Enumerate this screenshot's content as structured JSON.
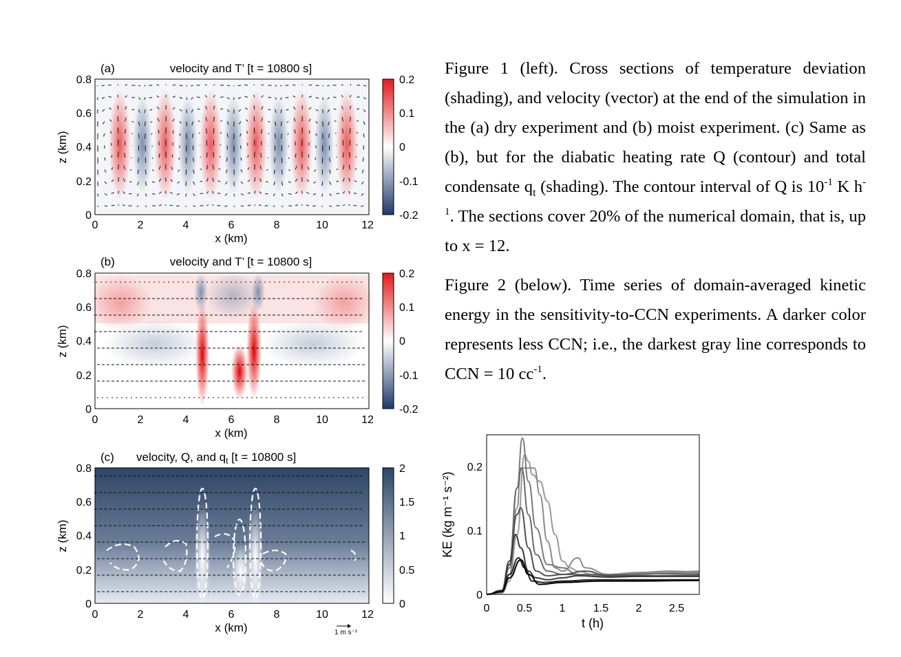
{
  "figure_left": {
    "panels": [
      {
        "label": "(a)",
        "title": "velocity and T’ [t = 10800 s]",
        "x_label": "x (km)",
        "y_label": "z (km)",
        "x_ticks": [
          "0",
          "2",
          "4",
          "6",
          "8",
          "10",
          "12"
        ],
        "y_ticks": [
          "0",
          "0.2",
          "0.4",
          "0.6",
          "0.8"
        ],
        "colorbar_ticks": [
          "-0.2",
          "-0.1",
          "0",
          "0.1",
          "0.2"
        ],
        "colormap": [
          "#1f3a6b",
          "#ffffff",
          "#e31a1c"
        ]
      },
      {
        "label": "(b)",
        "title": "velocity and T’ [t = 10800 s]",
        "x_label": "x (km)",
        "y_label": "z (km)",
        "x_ticks": [
          "0",
          "2",
          "4",
          "6",
          "8",
          "10",
          "12"
        ],
        "y_ticks": [
          "0",
          "0.2",
          "0.4",
          "0.6",
          "0.8"
        ],
        "colorbar_ticks": [
          "-0.2",
          "-0.1",
          "0",
          "0.1",
          "0.2"
        ],
        "colormap": [
          "#1f3a6b",
          "#ffffff",
          "#e31a1c"
        ]
      },
      {
        "label": "(c)",
        "title_main": "velocity, Q, and q",
        "title_sub": "t",
        "title_end": " [t = 10800 s]",
        "x_label": "x (km)",
        "y_label": "z (km)",
        "x_ticks": [
          "0",
          "2",
          "4",
          "6",
          "8",
          "10",
          "12"
        ],
        "y_ticks": [
          "0",
          "0.2",
          "0.4",
          "0.6",
          "0.8"
        ],
        "colorbar_ticks": [
          "0",
          "0.5",
          "1",
          "1.5",
          "2"
        ],
        "colormap": [
          "#ffffff",
          "#2c4668"
        ],
        "scale_label": "1 m s⁻¹"
      }
    ]
  },
  "caption": {
    "fig1_p1": "Figure 1 (left). Cross sections of temperature deviation (shading), and velocity (vector) at the end of the simulation in the (a) dry experiment and (b) moist experiment. (c) Same as (b), but for the diabatic heating rate Q (contour) and total condensate q",
    "fig1_p1_sub": "t",
    "fig1_p2": " (shading). The contour interval of Q is 10",
    "fig1_p2_sup": "-1",
    "fig1_p3": " K h",
    "fig1_p3_sup": "-1",
    "fig1_p4": ". The sections cover 20% of the numerical domain, that is, up to x = 12.",
    "fig2_p1": "Figure 2 (below). Time series of domain-averaged kinetic energy in the sensitivity-to-CCN experiments. A darker color represents less CCN; i.e., the darkest gray line corresponds to CCN = 10 cc",
    "fig2_sup": "-1",
    "fig2_end": "."
  },
  "chart_data": {
    "type": "line",
    "xlabel": "t (h)",
    "ylabel": "KE (kg m⁻¹ s⁻²)",
    "xlim": [
      0,
      2.8
    ],
    "ylim": [
      0,
      0.24
    ],
    "x_ticks": [
      "0",
      "0.5",
      "1",
      "1.5",
      "2",
      "2.5"
    ],
    "y_ticks": [
      "0",
      "0.1",
      "0.2"
    ],
    "grid": false,
    "series": [
      {
        "color": "#9a9a9a",
        "points": [
          [
            0,
            0
          ],
          [
            0.2,
            0.002
          ],
          [
            0.3,
            0.02
          ],
          [
            0.4,
            0.09
          ],
          [
            0.5,
            0.21
          ],
          [
            0.55,
            0.2
          ],
          [
            0.6,
            0.18
          ],
          [
            0.7,
            0.17
          ],
          [
            0.8,
            0.14
          ],
          [
            0.9,
            0.09
          ],
          [
            1.0,
            0.05
          ],
          [
            1.1,
            0.04
          ],
          [
            1.2,
            0.035
          ],
          [
            1.4,
            0.03
          ],
          [
            1.6,
            0.03
          ],
          [
            2.0,
            0.032
          ],
          [
            2.4,
            0.033
          ],
          [
            2.8,
            0.035
          ]
        ]
      },
      {
        "color": "#8a8a8a",
        "points": [
          [
            0,
            0
          ],
          [
            0.2,
            0.003
          ],
          [
            0.3,
            0.03
          ],
          [
            0.4,
            0.13
          ],
          [
            0.45,
            0.19
          ],
          [
            0.55,
            0.19
          ],
          [
            0.63,
            0.19
          ],
          [
            0.7,
            0.15
          ],
          [
            0.8,
            0.08
          ],
          [
            0.9,
            0.04
          ],
          [
            1.0,
            0.035
          ],
          [
            1.2,
            0.055
          ],
          [
            1.3,
            0.04
          ],
          [
            1.6,
            0.03
          ],
          [
            2.0,
            0.033
          ],
          [
            2.4,
            0.035
          ],
          [
            2.8,
            0.034
          ]
        ]
      },
      {
        "color": "#7a7a7a",
        "points": [
          [
            0,
            0
          ],
          [
            0.2,
            0.004
          ],
          [
            0.3,
            0.04
          ],
          [
            0.4,
            0.16
          ],
          [
            0.47,
            0.235
          ],
          [
            0.55,
            0.17
          ],
          [
            0.65,
            0.1
          ],
          [
            0.8,
            0.045
          ],
          [
            1.0,
            0.04
          ],
          [
            1.2,
            0.03
          ],
          [
            1.6,
            0.028
          ],
          [
            2.0,
            0.03
          ],
          [
            2.4,
            0.032
          ],
          [
            2.8,
            0.032
          ]
        ]
      },
      {
        "color": "#6a6a6a",
        "points": [
          [
            0,
            0
          ],
          [
            0.2,
            0.005
          ],
          [
            0.3,
            0.05
          ],
          [
            0.4,
            0.16
          ],
          [
            0.46,
            0.19
          ],
          [
            0.55,
            0.12
          ],
          [
            0.65,
            0.06
          ],
          [
            0.8,
            0.035
          ],
          [
            1.0,
            0.03
          ],
          [
            1.3,
            0.03
          ],
          [
            1.8,
            0.03
          ],
          [
            2.2,
            0.031
          ],
          [
            2.8,
            0.03
          ]
        ]
      },
      {
        "color": "#505050",
        "points": [
          [
            0,
            0
          ],
          [
            0.2,
            0.006
          ],
          [
            0.3,
            0.05
          ],
          [
            0.4,
            0.12
          ],
          [
            0.45,
            0.13
          ],
          [
            0.55,
            0.07
          ],
          [
            0.65,
            0.035
          ],
          [
            0.8,
            0.028
          ],
          [
            1.0,
            0.03
          ],
          [
            1.3,
            0.035
          ],
          [
            1.6,
            0.028
          ],
          [
            2.0,
            0.028
          ],
          [
            2.8,
            0.028
          ]
        ]
      },
      {
        "color": "#3a3a3a",
        "points": [
          [
            0,
            0
          ],
          [
            0.2,
            0.006
          ],
          [
            0.3,
            0.045
          ],
          [
            0.38,
            0.09
          ],
          [
            0.45,
            0.07
          ],
          [
            0.55,
            0.035
          ],
          [
            0.65,
            0.025
          ],
          [
            0.8,
            0.022
          ],
          [
            1.0,
            0.025
          ],
          [
            1.2,
            0.028
          ],
          [
            1.6,
            0.026
          ],
          [
            2.0,
            0.027
          ],
          [
            2.8,
            0.027
          ]
        ]
      },
      {
        "color": "#222222",
        "points": [
          [
            0,
            0
          ],
          [
            0.2,
            0.005
          ],
          [
            0.3,
            0.03
          ],
          [
            0.42,
            0.055
          ],
          [
            0.5,
            0.04
          ],
          [
            0.6,
            0.02
          ],
          [
            0.75,
            0.018
          ],
          [
            1.0,
            0.02
          ],
          [
            1.4,
            0.022
          ],
          [
            2.0,
            0.022
          ],
          [
            2.8,
            0.022
          ]
        ]
      },
      {
        "color": "#000000",
        "points": [
          [
            0,
            0
          ],
          [
            0.2,
            0.004
          ],
          [
            0.3,
            0.025
          ],
          [
            0.45,
            0.052
          ],
          [
            0.55,
            0.03
          ],
          [
            0.7,
            0.015
          ],
          [
            1.0,
            0.018
          ],
          [
            1.5,
            0.02
          ],
          [
            2.0,
            0.02
          ],
          [
            2.8,
            0.021
          ]
        ]
      }
    ]
  }
}
